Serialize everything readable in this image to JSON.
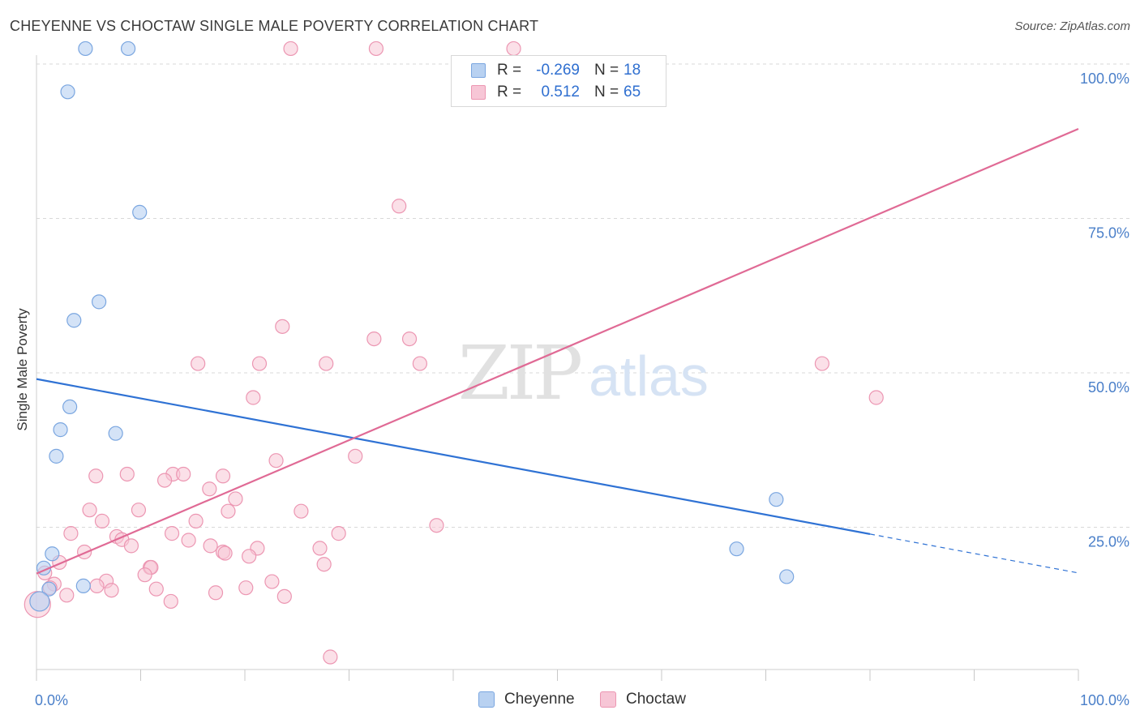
{
  "title": "CHEYENNE VS CHOCTAW SINGLE MALE POVERTY CORRELATION CHART",
  "source": "Source: ZipAtlas.com",
  "watermark": {
    "zip": "ZIP",
    "atlas": "atlas"
  },
  "legend": {
    "rows": [
      {
        "r_label": "R =",
        "r_value": "-0.269",
        "n_label": "N =",
        "n_value": "18"
      },
      {
        "r_label": "R =",
        "r_value": "0.512",
        "n_label": "N =",
        "n_value": "65"
      }
    ]
  },
  "bottom_legend": [
    "Cheyenne",
    "Choctaw"
  ],
  "colors": {
    "cheyenne_fill": "#b8d1f1",
    "cheyenne_stroke": "#7aa6e0",
    "cheyenne_line": "#2f72d4",
    "choctaw_fill": "#f7c6d6",
    "choctaw_stroke": "#ec96b2",
    "choctaw_line": "#e06a95",
    "tick_text": "#4a7fc9",
    "grid": "#d9d9d9"
  },
  "chart_data": {
    "type": "scatter",
    "title": "CHEYENNE VS CHOCTAW SINGLE MALE POVERTY CORRELATION CHART",
    "xlabel": "",
    "ylabel": "Single Male Poverty",
    "xlim": [
      0,
      100
    ],
    "ylim": [
      0,
      105
    ],
    "x_tick_labels": [
      "0.0%",
      "100.0%"
    ],
    "y_ticks": [
      25,
      50,
      75,
      100
    ],
    "y_tick_labels": [
      "25.0%",
      "50.0%",
      "75.0%",
      "100.0%"
    ],
    "series": [
      {
        "name": "Cheyenne",
        "r": -0.269,
        "n": 18,
        "trend": {
          "x0": 0,
          "y0": 49.0,
          "x1": 80,
          "y1": 23.9,
          "dash_to_x": 100,
          "dash_to_y": 17.6
        },
        "points": [
          [
            4.7,
            102.5
          ],
          [
            8.8,
            102.5
          ],
          [
            3.0,
            95.5
          ],
          [
            9.9,
            76.0
          ],
          [
            6.0,
            61.5
          ],
          [
            3.6,
            58.5
          ],
          [
            3.2,
            44.5
          ],
          [
            2.3,
            40.8
          ],
          [
            7.6,
            40.2
          ],
          [
            1.9,
            36.5
          ],
          [
            1.5,
            20.7
          ],
          [
            0.7,
            18.4
          ],
          [
            1.2,
            15.0
          ],
          [
            4.5,
            15.5
          ],
          [
            0.3,
            13.0
          ],
          [
            67.2,
            21.5
          ],
          [
            71.0,
            29.5
          ],
          [
            72.0,
            17.0
          ]
        ]
      },
      {
        "name": "Choctaw",
        "r": 0.512,
        "n": 65,
        "trend": {
          "x0": 0,
          "y0": 17.5,
          "x1": 100,
          "y1": 89.5
        },
        "points": [
          [
            24.4,
            102.5
          ],
          [
            32.6,
            102.5
          ],
          [
            45.8,
            102.5
          ],
          [
            34.8,
            77.0
          ],
          [
            23.6,
            57.5
          ],
          [
            32.4,
            55.5
          ],
          [
            35.8,
            55.5
          ],
          [
            15.5,
            51.5
          ],
          [
            21.4,
            51.5
          ],
          [
            27.8,
            51.5
          ],
          [
            36.8,
            51.5
          ],
          [
            75.4,
            51.5
          ],
          [
            20.8,
            46.0
          ],
          [
            80.6,
            46.0
          ],
          [
            30.6,
            36.5
          ],
          [
            23.0,
            35.8
          ],
          [
            8.7,
            33.6
          ],
          [
            13.1,
            33.6
          ],
          [
            14.1,
            33.6
          ],
          [
            5.7,
            33.3
          ],
          [
            17.9,
            33.3
          ],
          [
            12.3,
            32.6
          ],
          [
            16.6,
            31.2
          ],
          [
            19.1,
            29.6
          ],
          [
            5.1,
            27.8
          ],
          [
            9.8,
            27.8
          ],
          [
            18.4,
            27.6
          ],
          [
            25.4,
            27.6
          ],
          [
            6.3,
            26.0
          ],
          [
            15.3,
            26.0
          ],
          [
            38.4,
            25.3
          ],
          [
            3.3,
            24.0
          ],
          [
            13.0,
            24.0
          ],
          [
            29.0,
            24.0
          ],
          [
            7.7,
            23.5
          ],
          [
            8.2,
            23.0
          ],
          [
            14.6,
            22.9
          ],
          [
            9.1,
            22.0
          ],
          [
            16.7,
            22.0
          ],
          [
            21.2,
            21.6
          ],
          [
            27.2,
            21.6
          ],
          [
            4.6,
            21.0
          ],
          [
            17.9,
            21.0
          ],
          [
            18.1,
            20.8
          ],
          [
            20.4,
            20.3
          ],
          [
            2.2,
            19.3
          ],
          [
            27.6,
            19.0
          ],
          [
            10.9,
            18.5
          ],
          [
            11.0,
            18.5
          ],
          [
            0.8,
            17.6
          ],
          [
            10.4,
            17.3
          ],
          [
            6.7,
            16.3
          ],
          [
            22.6,
            16.2
          ],
          [
            1.7,
            15.8
          ],
          [
            5.8,
            15.5
          ],
          [
            1.3,
            15.2
          ],
          [
            20.1,
            15.2
          ],
          [
            11.5,
            15.0
          ],
          [
            7.2,
            14.8
          ],
          [
            17.2,
            14.4
          ],
          [
            2.9,
            14.0
          ],
          [
            12.9,
            13.0
          ],
          [
            23.8,
            13.8
          ],
          [
            0.1,
            12.5
          ],
          [
            28.2,
            4.0
          ]
        ]
      }
    ]
  }
}
